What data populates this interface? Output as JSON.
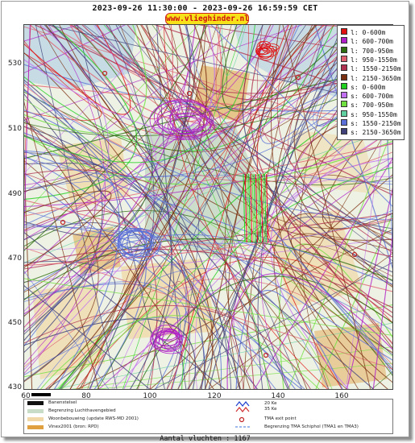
{
  "header": {
    "title": "2023-09-26 11:30:00 - 2023-09-26 16:59:59 CET",
    "site": "www.vlieghinder.nl"
  },
  "axes": {
    "y_ticks": [
      "530",
      "510",
      "490",
      "470",
      "450",
      "430"
    ],
    "x_ticks": [
      "60",
      "80",
      "100",
      "120",
      "140",
      "160"
    ]
  },
  "legend": {
    "items": [
      {
        "label": "l: 0-600m",
        "color": "#e01010"
      },
      {
        "label": "l: 600-700m",
        "color": "#b020c8"
      },
      {
        "label": "l: 700-950m",
        "color": "#2e6e10"
      },
      {
        "label": "l: 950-1550m",
        "color": "#e06070"
      },
      {
        "label": "l: 1550-2150m",
        "color": "#b03050"
      },
      {
        "label": "l: 2150-3650m",
        "color": "#7a3010"
      },
      {
        "label": "s: 0-600m",
        "color": "#20d020"
      },
      {
        "label": "s: 600-700m",
        "color": "#c070f0"
      },
      {
        "label": "s: 700-950m",
        "color": "#70e040"
      },
      {
        "label": "s: 950-1550m",
        "color": "#60d0a0"
      },
      {
        "label": "s: 1550-2150m",
        "color": "#5a70d8"
      },
      {
        "label": "s: 2150-3650m",
        "color": "#40407a"
      }
    ]
  },
  "bottom_legend": {
    "items": [
      {
        "label": "Banenstelsel",
        "color": "#111111"
      },
      {
        "label": "Begrenzing Luchthavengebied",
        "color": "#c8dcc8"
      },
      {
        "label": "Woonbebouwing (update RWS-MD 2001)",
        "color": "#f0d8a8"
      },
      {
        "label": "Vinex2001 (bron: RPD)",
        "color": "#e0a040"
      }
    ],
    "right_items": [
      {
        "label": "20 Ke",
        "color": "#2040d0"
      },
      {
        "label": "35 Ke",
        "color": "#d03030"
      },
      {
        "label": "TMA exit point",
        "color": "#c02020"
      },
      {
        "label": "Begrenzing TMA Schiphol  (TMA1 en TMA3)",
        "color": "#6090e0"
      }
    ]
  },
  "footer": {
    "count_text": "Aantal vluchten : 1167"
  }
}
